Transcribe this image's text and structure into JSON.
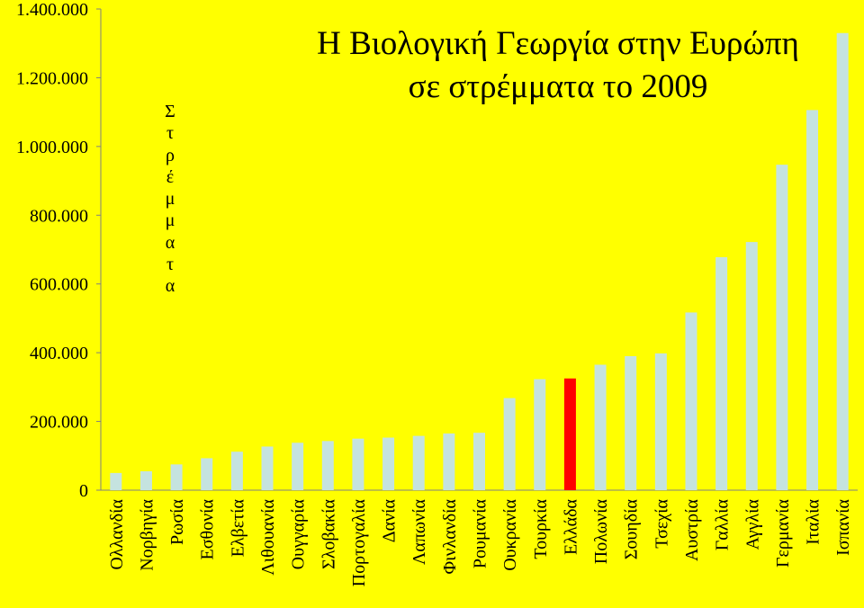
{
  "chart_data": {
    "type": "bar",
    "title": "Η Βιολογική Γεωργία στην Ευρώπη",
    "subtitle": "σε στρέμματα το 2009",
    "ylabel": "Στρέμματα",
    "ylabel_letters": [
      "Σ",
      "τ",
      "ρ",
      "έ",
      "μ",
      "μ",
      "α",
      "τ",
      "α"
    ],
    "xlabel": "",
    "ylim": [
      0,
      1400000
    ],
    "yticks": [
      0,
      200000,
      400000,
      600000,
      800000,
      1000000,
      1200000,
      1400000
    ],
    "ytick_labels": [
      "0",
      "200.000",
      "400.000",
      "600.000",
      "800.000",
      "1.000.000",
      "1.200.000",
      "1.400.000"
    ],
    "categories": [
      "Ολλανδία",
      "Νορβηγία",
      "Ρωσία",
      "Εσθονία",
      "Ελβετία",
      "Λιθουανία",
      "Ουγγαρία",
      "Σλοβακία",
      "Πορτογαλία",
      "Δανία",
      "Λαπωνία",
      "Φινλανδία",
      "Ρουμανία",
      "Ουκρανία",
      "Τουρκία",
      "Ελλάδα",
      "Πολωνία",
      "Σουηδία",
      "Τσεχία",
      "Αυστρία",
      "Γαλλία",
      "Αγγλία",
      "Γερμανία",
      "Ιταλία",
      "Ισπανία"
    ],
    "values": [
      50000,
      55000,
      75000,
      93000,
      112000,
      127000,
      138000,
      143000,
      150000,
      153000,
      158000,
      165000,
      167000,
      268000,
      323000,
      325000,
      365000,
      390000,
      398000,
      517000,
      678000,
      722000,
      947000,
      1106000,
      1330000
    ],
    "highlight": "Ελλάδα",
    "grid": false,
    "legend": "none",
    "colors": {
      "bar": "#c5e3df",
      "highlight": "#ff0000",
      "background": "#ffff00",
      "axis": "#808080",
      "text": "#000000"
    }
  }
}
